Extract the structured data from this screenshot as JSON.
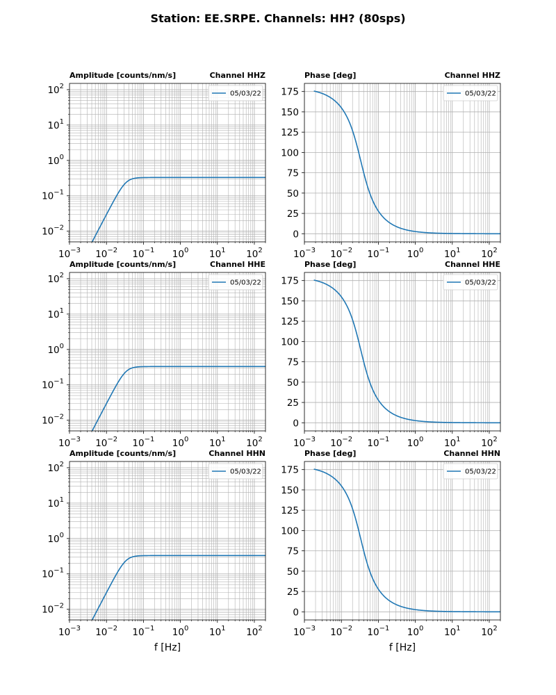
{
  "title": "Station: EE.SRPE. Channels: HH? (80sps)",
  "x_axis_label": "f [Hz]",
  "colors": {
    "series": "#1f77b4",
    "grid": "#b0b0b0"
  },
  "chart_data": [
    {
      "type": "line",
      "row": 0,
      "col": 0,
      "title_left": "Amplitude [counts/nm/s]",
      "title_right": "Channel HHZ",
      "xscale": "log",
      "yscale": "log",
      "xlim": [
        0.001,
        200
      ],
      "ylim": [
        0.005,
        150
      ],
      "xticks": [
        -3,
        -2,
        -1,
        0,
        1,
        2
      ],
      "yticks": [
        -2,
        -1,
        0,
        1,
        2
      ],
      "legend": "05/03/22",
      "legend_loc": "top-right",
      "kind": "amplitude",
      "plateau": 0.33,
      "corner_hz": 0.0333,
      "f_min": 0.0018,
      "f_max": 200
    },
    {
      "type": "line",
      "row": 0,
      "col": 1,
      "title_left": "Phase [deg]",
      "title_right": "Channel HHZ",
      "xscale": "log",
      "yscale": "linear",
      "xlim": [
        0.001,
        200
      ],
      "ylim": [
        -10,
        185
      ],
      "xticks": [
        -3,
        -2,
        -1,
        0,
        1,
        2
      ],
      "yticks": [
        0,
        25,
        50,
        75,
        100,
        125,
        150,
        175
      ],
      "legend": "05/03/22",
      "legend_loc": "top-right",
      "kind": "phase",
      "corner_hz": 0.0333,
      "f_min": 0.0018,
      "f_max": 200
    },
    {
      "type": "line",
      "row": 1,
      "col": 0,
      "title_left": "Amplitude [counts/nm/s]",
      "title_right": "Channel HHE",
      "xscale": "log",
      "yscale": "log",
      "xlim": [
        0.001,
        200
      ],
      "ylim": [
        0.005,
        150
      ],
      "xticks": [
        -3,
        -2,
        -1,
        0,
        1,
        2
      ],
      "yticks": [
        -2,
        -1,
        0,
        1,
        2
      ],
      "legend": "05/03/22",
      "legend_loc": "top-right",
      "kind": "amplitude",
      "plateau": 0.33,
      "corner_hz": 0.0333,
      "f_min": 0.0018,
      "f_max": 200
    },
    {
      "type": "line",
      "row": 1,
      "col": 1,
      "title_left": "Phase [deg]",
      "title_right": "Channel HHE",
      "xscale": "log",
      "yscale": "linear",
      "xlim": [
        0.001,
        200
      ],
      "ylim": [
        -10,
        185
      ],
      "xticks": [
        -3,
        -2,
        -1,
        0,
        1,
        2
      ],
      "yticks": [
        0,
        25,
        50,
        75,
        100,
        125,
        150,
        175
      ],
      "legend": "05/03/22",
      "legend_loc": "top-right",
      "kind": "phase",
      "corner_hz": 0.0333,
      "f_min": 0.0018,
      "f_max": 200
    },
    {
      "type": "line",
      "row": 2,
      "col": 0,
      "title_left": "Amplitude [counts/nm/s]",
      "title_right": "Channel HHN",
      "xscale": "log",
      "yscale": "log",
      "xlim": [
        0.001,
        200
      ],
      "ylim": [
        0.005,
        150
      ],
      "xticks": [
        -3,
        -2,
        -1,
        0,
        1,
        2
      ],
      "yticks": [
        -2,
        -1,
        0,
        1,
        2
      ],
      "legend": "05/03/22",
      "legend_loc": "top-right",
      "kind": "amplitude",
      "plateau": 0.33,
      "corner_hz": 0.0333,
      "f_min": 0.0018,
      "f_max": 200
    },
    {
      "type": "line",
      "row": 2,
      "col": 1,
      "title_left": "Phase [deg]",
      "title_right": "Channel HHN",
      "xscale": "log",
      "yscale": "linear",
      "xlim": [
        0.001,
        200
      ],
      "ylim": [
        -10,
        185
      ],
      "xticks": [
        -3,
        -2,
        -1,
        0,
        1,
        2
      ],
      "yticks": [
        0,
        25,
        50,
        75,
        100,
        125,
        150,
        175
      ],
      "legend": "05/03/22",
      "legend_loc": "top-right",
      "kind": "phase",
      "corner_hz": 0.0333,
      "f_min": 0.0018,
      "f_max": 200
    }
  ]
}
